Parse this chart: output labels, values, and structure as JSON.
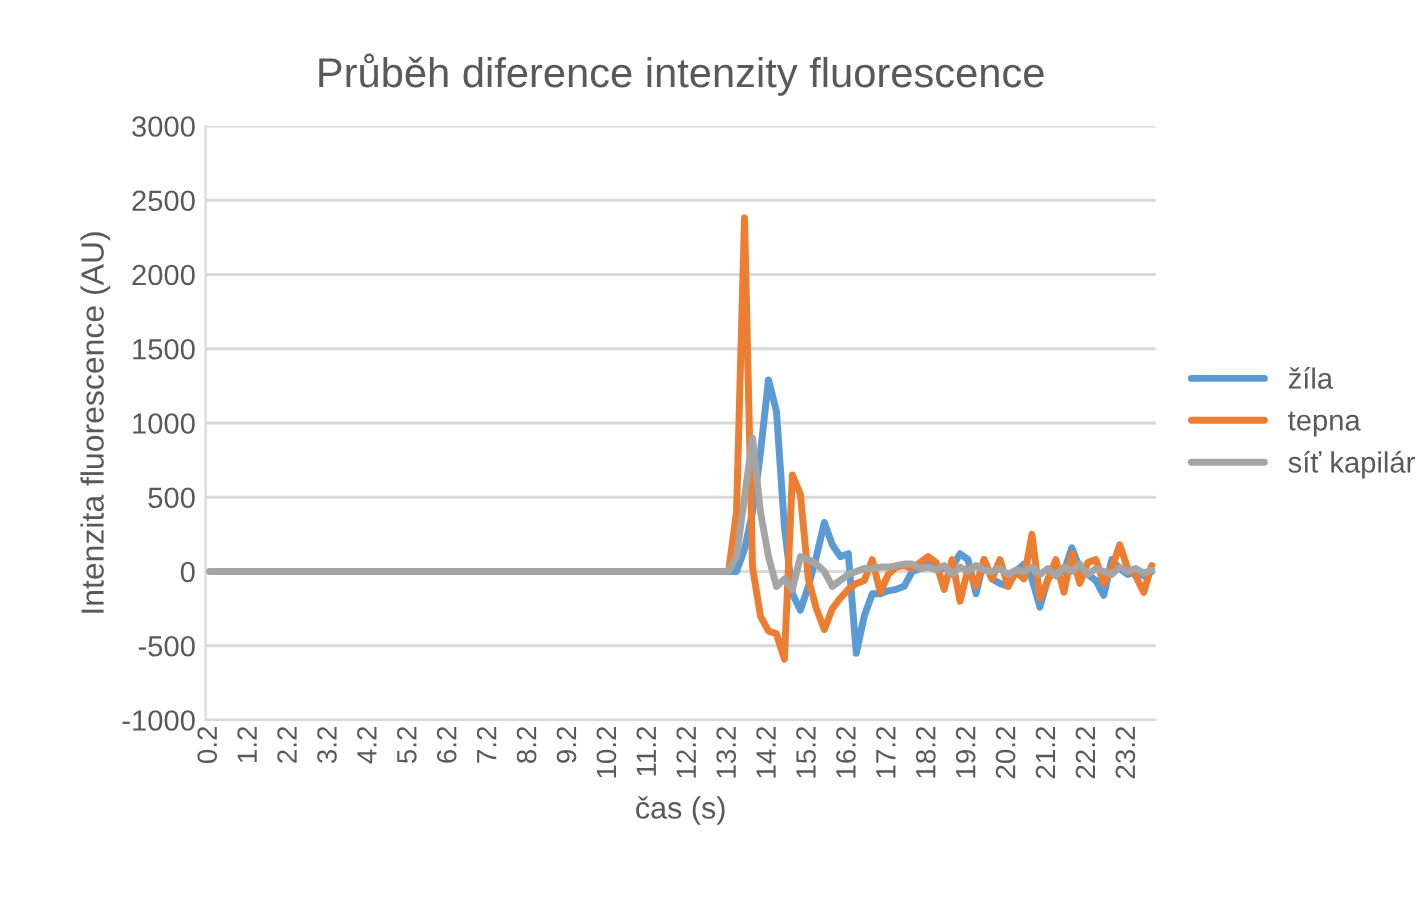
{
  "chart_data": {
    "type": "line",
    "title": "Průběh diference intenzity fluorescence",
    "xlabel": "čas (s)",
    "ylabel": "Intenzita fluorescence (AU)",
    "categories": [
      "0.2",
      null,
      null,
      null,
      null,
      "1.2",
      null,
      null,
      null,
      null,
      "2.2",
      null,
      null,
      null,
      null,
      "3.2",
      null,
      null,
      null,
      null,
      "4.2",
      null,
      null,
      null,
      null,
      "5.2",
      null,
      null,
      null,
      null,
      "6.2",
      null,
      null,
      null,
      null,
      "7.2",
      null,
      null,
      null,
      null,
      "8.2",
      null,
      null,
      null,
      null,
      "9.2",
      null,
      null,
      null,
      null,
      "10.2",
      null,
      null,
      null,
      null,
      "11.2",
      null,
      null,
      null,
      null,
      "12.2",
      null,
      null,
      null,
      null,
      "13.2",
      null,
      null,
      null,
      null,
      "14.2",
      null,
      null,
      null,
      null,
      "15.2",
      null,
      null,
      null,
      null,
      "16.2",
      null,
      null,
      null,
      null,
      "17.2",
      null,
      null,
      null,
      null,
      "18.2",
      null,
      null,
      null,
      null,
      "19.2",
      null,
      null,
      null,
      null,
      "20.2",
      null,
      null,
      null,
      null,
      "21.2",
      null,
      null,
      null,
      null,
      "22.2",
      null,
      null,
      null,
      null,
      "23.2",
      null,
      null,
      null
    ],
    "series": [
      {
        "name": "žíla",
        "color": "#5b9bd5",
        "values": [
          null,
          null,
          null,
          null,
          null,
          null,
          null,
          null,
          null,
          null,
          null,
          null,
          null,
          null,
          null,
          null,
          null,
          null,
          null,
          null,
          null,
          null,
          null,
          null,
          null,
          null,
          null,
          null,
          null,
          null,
          null,
          null,
          null,
          null,
          null,
          null,
          null,
          null,
          null,
          null,
          null,
          null,
          null,
          null,
          null,
          null,
          null,
          null,
          null,
          null,
          null,
          null,
          null,
          null,
          null,
          null,
          null,
          null,
          null,
          null,
          null,
          null,
          null,
          null,
          null,
          0,
          0,
          150,
          400,
          800,
          1290,
          1080,
          300,
          -150,
          -260,
          -100,
          100,
          330,
          180,
          100,
          120,
          -550,
          -300,
          -150,
          -150,
          -130,
          -120,
          -100,
          0,
          20,
          50,
          20,
          20,
          30,
          120,
          80,
          -150,
          80,
          -50,
          -80,
          -100,
          0,
          50,
          -50,
          -240,
          -50,
          20,
          0,
          160,
          20,
          -20,
          -60,
          -160,
          80,
          20,
          -20,
          0,
          -30,
          0
        ]
      },
      {
        "name": "tepna",
        "color": "#ed7d31",
        "values": [
          null,
          null,
          null,
          null,
          null,
          null,
          null,
          null,
          null,
          null,
          null,
          null,
          null,
          null,
          null,
          null,
          null,
          null,
          null,
          null,
          null,
          null,
          null,
          null,
          null,
          null,
          null,
          null,
          null,
          null,
          null,
          null,
          null,
          null,
          null,
          null,
          null,
          null,
          null,
          null,
          null,
          null,
          null,
          null,
          null,
          null,
          null,
          null,
          null,
          null,
          null,
          null,
          null,
          null,
          null,
          null,
          null,
          null,
          null,
          null,
          null,
          null,
          null,
          null,
          null,
          0,
          400,
          2380,
          30,
          -300,
          -400,
          -420,
          -590,
          650,
          520,
          -50,
          -250,
          -390,
          -250,
          -180,
          -120,
          -80,
          -60,
          80,
          -140,
          -20,
          30,
          40,
          20,
          60,
          100,
          60,
          -120,
          80,
          -200,
          20,
          -100,
          80,
          -50,
          80,
          -100,
          0,
          -50,
          250,
          -180,
          -60,
          80,
          -140,
          120,
          -80,
          60,
          80,
          -80,
          20,
          180,
          20,
          -30,
          -140,
          40
        ]
      },
      {
        "name": "síť kapilár",
        "color": "#a5a5a5",
        "values": [
          0,
          0,
          0,
          0,
          0,
          0,
          0,
          0,
          0,
          0,
          0,
          0,
          0,
          0,
          0,
          0,
          0,
          0,
          0,
          0,
          0,
          0,
          0,
          0,
          0,
          0,
          0,
          0,
          0,
          0,
          0,
          0,
          0,
          0,
          0,
          0,
          0,
          0,
          0,
          0,
          0,
          0,
          0,
          0,
          0,
          0,
          0,
          0,
          0,
          0,
          0,
          0,
          0,
          0,
          0,
          0,
          0,
          0,
          0,
          0,
          0,
          0,
          0,
          0,
          0,
          0,
          100,
          500,
          900,
          400,
          100,
          -100,
          -50,
          -120,
          100,
          80,
          50,
          0,
          -100,
          -60,
          -20,
          0,
          20,
          20,
          30,
          30,
          40,
          50,
          50,
          20,
          30,
          10,
          40,
          -20,
          30,
          0,
          40,
          10,
          0,
          20,
          -20,
          10,
          0,
          30,
          -20,
          20,
          -30,
          30,
          0,
          50,
          -20,
          20,
          0,
          -20,
          30,
          0,
          20,
          -10,
          10
        ]
      }
    ],
    "ylim": [
      -1000,
      3000
    ],
    "yticks": [
      -1000,
      -500,
      0,
      500,
      1000,
      1500,
      2000,
      2500,
      3000
    ],
    "grid": "y",
    "legend": "right",
    "marker": "none",
    "line_style": "solid"
  }
}
